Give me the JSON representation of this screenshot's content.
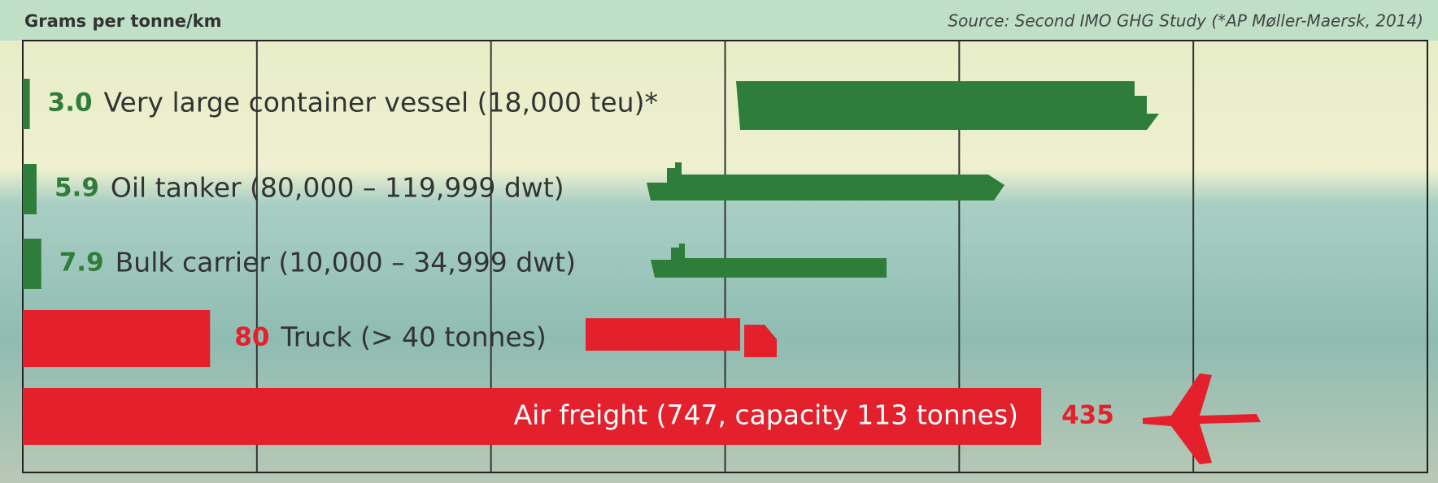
{
  "chart_data": {
    "type": "barh",
    "title": "Grams per tonne/km",
    "source": "Source: Second IMO GHG Study (*AP Møller-Maersk, 2014)",
    "categories": [
      "Very large container vessel (18,000 teu)*",
      "Oil tanker (80,000 – 119,999 dwt)",
      "Bulk carrier (10,000 – 34,999 dwt)",
      "Truck (> 40 tonnes)",
      "Air freight (747, capacity 113 tonnes)"
    ],
    "values": [
      3,
      5.9,
      7.9,
      80,
      435
    ],
    "value_labels": [
      "3.0",
      "5.9",
      "7.9",
      "80",
      "435"
    ],
    "colors": [
      "#2f7d3a",
      "#2f7d3a",
      "#2f7d3a",
      "#e3202b",
      "#e3202b"
    ],
    "xlim": [
      0,
      600
    ],
    "xticks": [
      100,
      200,
      300,
      400,
      500
    ],
    "grid": true
  }
}
